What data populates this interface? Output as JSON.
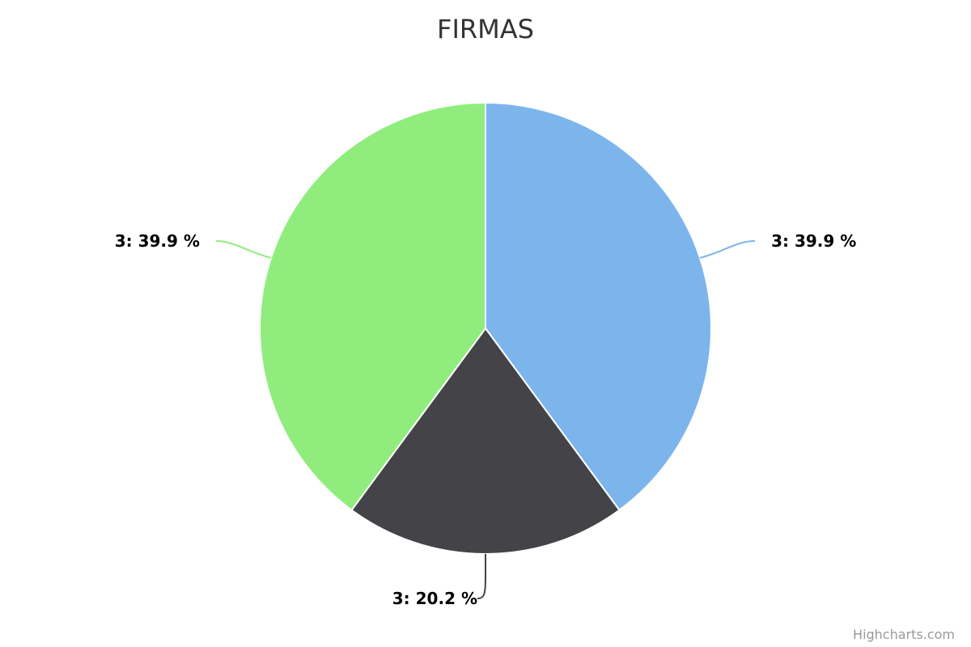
{
  "chart_data": {
    "type": "pie",
    "title": "FIRMAS",
    "slices": [
      {
        "label": "3: 39.9 %",
        "value": 39.9,
        "color": "#7cb5ec"
      },
      {
        "label": "3: 20.2 %",
        "value": 20.2,
        "color": "#434348"
      },
      {
        "label": "3: 39.9 %",
        "value": 39.9,
        "color": "#90ed7d"
      }
    ],
    "legend": false
  },
  "credits": "Highcharts.com"
}
